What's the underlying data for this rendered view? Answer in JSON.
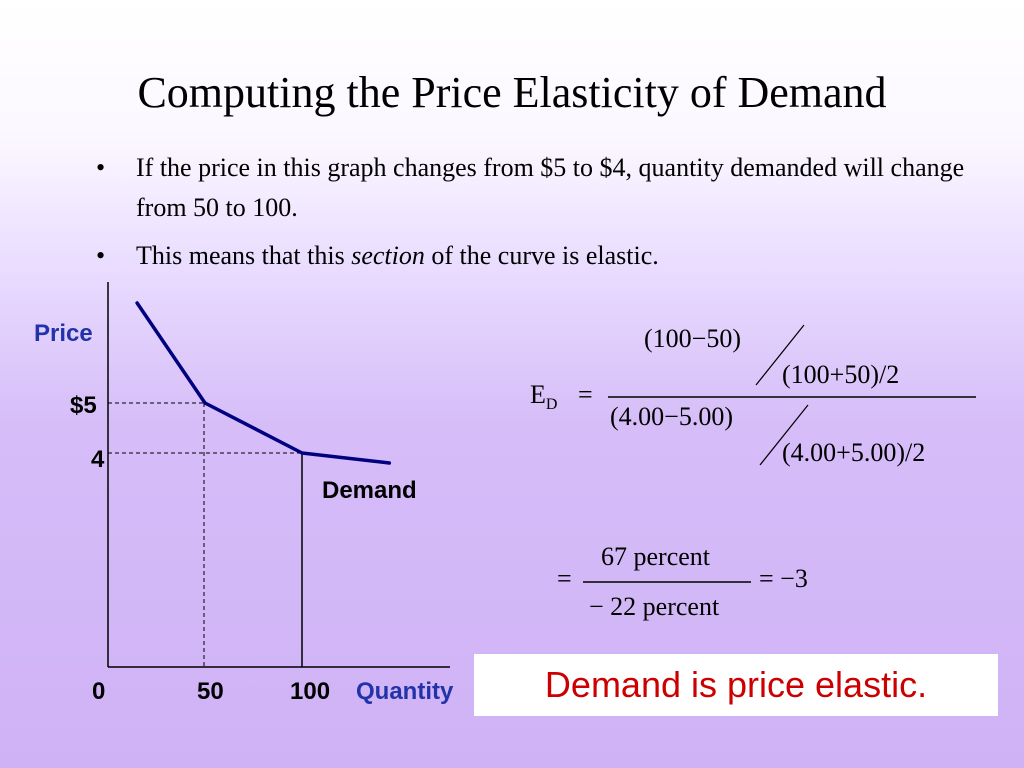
{
  "slide": {
    "title": "Computing the Price Elasticity of Demand",
    "bullets": [
      {
        "text": "If the price in this graph changes from $5 to $4, quantity demanded will change from 50 to 100."
      },
      {
        "before": "This means that this ",
        "emphasis": "section",
        "after": " of the curve is elastic."
      }
    ],
    "bullet_symbol": "•"
  },
  "graph": {
    "y_axis_label": "Price",
    "x_axis_label": "Quantity",
    "y_ticks": [
      "$5",
      "4"
    ],
    "x_ticks": [
      "0",
      "50",
      "100"
    ],
    "curve_label": "Demand",
    "axis_label_color": "#2233aa",
    "curve_color": "#000080"
  },
  "chart_data": {
    "type": "line",
    "series": [
      {
        "name": "Demand",
        "points": [
          [
            15,
            7
          ],
          [
            50,
            5
          ],
          [
            100,
            4
          ],
          [
            145,
            3.8
          ]
        ]
      }
    ],
    "reference_points": [
      {
        "quantity": 50,
        "price": 5
      },
      {
        "quantity": 100,
        "price": 4
      }
    ],
    "xlabel": "Quantity",
    "ylabel": "Price",
    "x_ticks": [
      0,
      50,
      100
    ],
    "y_ticks": [
      4,
      5
    ]
  },
  "formula": {
    "lhs": "E",
    "lhs_sub": "D",
    "equals": "=",
    "num_top": "(100−50)",
    "num_bottom": "(100+50)/2",
    "den_top": "(4.00−5.00)",
    "den_bottom": "(4.00+5.00)/2",
    "result_num": "67 percent",
    "result_den": "− 22 percent",
    "result_value": "= −3",
    "result_equals": "="
  },
  "conclusion": {
    "text": "Demand is price elastic.",
    "color": "#cc0000"
  }
}
